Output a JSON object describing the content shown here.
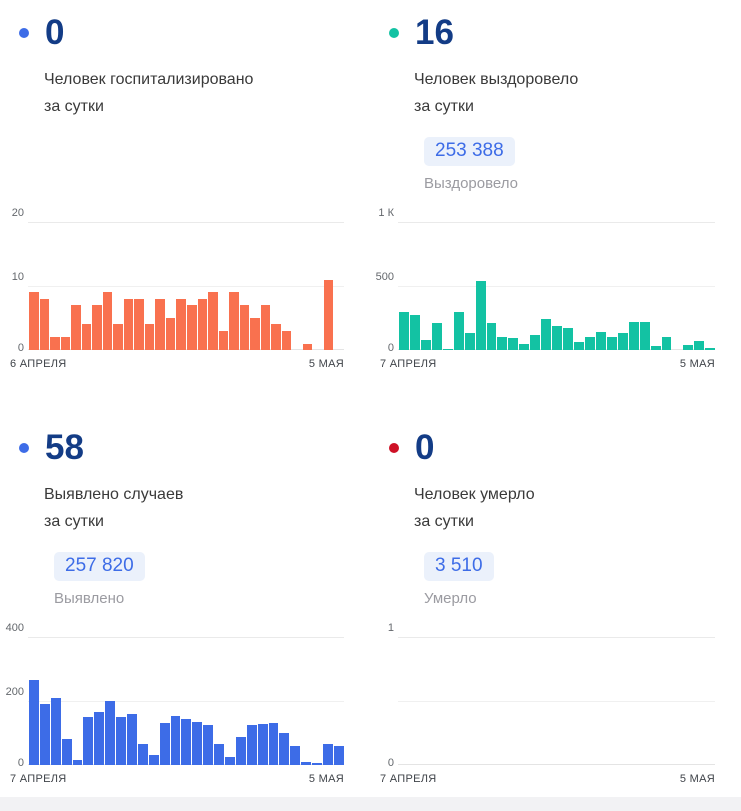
{
  "page": {
    "background": "#ffffff",
    "footer_strip_color": "#f2f2f4"
  },
  "cards": [
    {
      "dot_color": "#3d6ce7",
      "value": "0",
      "label_line1": "Человек госпитализировано",
      "label_line2": "за сутки"
    },
    {
      "dot_color": "#13c2a3",
      "value": "16",
      "label_line1": "Человек выздоровело",
      "label_line2": "за сутки",
      "badge_value": "253 388",
      "badge_caption": "Выздоровело"
    },
    {
      "dot_color": "#3d6ce7",
      "value": "58",
      "label_line1": "Выявлено случаев",
      "label_line2": "за сутки",
      "badge_value": "257 820",
      "badge_caption": "Выявлено"
    },
    {
      "dot_color": "#ce1126",
      "value": "0",
      "label_line1": "Человек умерло",
      "label_line2": "за сутки",
      "badge_value": "3 510",
      "badge_caption": "Умерло"
    }
  ],
  "chart_data": [
    {
      "type": "bar",
      "title": "Человек госпитализировано за сутки",
      "color": "#f9714f",
      "ylim": [
        0,
        20
      ],
      "ytick_labels": [
        "20",
        "10",
        "0"
      ],
      "xlabel_start": "6 АПРЕЛЯ",
      "xlabel_end": "5 МАЯ",
      "grid": true,
      "values": [
        9,
        8,
        2,
        2,
        7,
        4,
        7,
        9,
        4,
        8,
        8,
        4,
        8,
        5,
        8,
        7,
        8,
        9,
        3,
        9,
        7,
        5,
        7,
        4,
        3,
        0,
        1,
        0,
        11,
        0
      ]
    },
    {
      "type": "bar",
      "title": "Человек выздоровело за сутки",
      "color": "#13c2a3",
      "ylim": [
        0,
        1000
      ],
      "ytick_labels": [
        "1 К",
        "500",
        "0"
      ],
      "xlabel_start": "7 АПРЕЛЯ",
      "xlabel_end": "5 МАЯ",
      "grid": true,
      "values": [
        300,
        270,
        80,
        210,
        10,
        300,
        130,
        540,
        210,
        100,
        90,
        50,
        120,
        240,
        190,
        175,
        60,
        100,
        140,
        100,
        130,
        215,
        220,
        30,
        100,
        0,
        40,
        70,
        15
      ]
    },
    {
      "type": "bar",
      "title": "Выявлено случаев за сутки",
      "color": "#3d6ce7",
      "ylim": [
        0,
        400
      ],
      "ytick_labels": [
        "400",
        "200",
        "0"
      ],
      "xlabel_start": "7 АПРЕЛЯ",
      "xlabel_end": "5 МАЯ",
      "grid": true,
      "values": [
        265,
        190,
        210,
        80,
        15,
        150,
        165,
        200,
        150,
        160,
        65,
        30,
        130,
        152,
        145,
        135,
        125,
        65,
        25,
        88,
        125,
        127,
        130,
        100,
        58,
        8,
        5,
        65,
        60
      ]
    },
    {
      "type": "bar",
      "title": "Человек умерло за сутки",
      "color": "#ce1126",
      "ylim": [
        0,
        1
      ],
      "ytick_labels": [
        "1",
        "",
        "0"
      ],
      "xlabel_start": "7 АПРЕЛЯ",
      "xlabel_end": "5 МАЯ",
      "grid": true,
      "values": []
    }
  ]
}
